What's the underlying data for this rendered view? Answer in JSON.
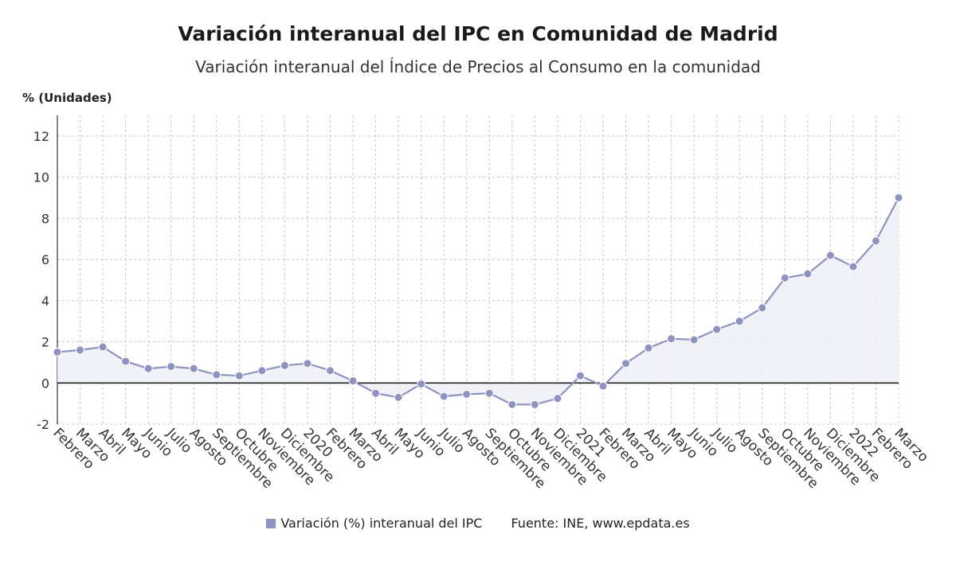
{
  "chart_data": {
    "type": "area",
    "title": "Variación interanual del IPC en Comunidad de Madrid",
    "subtitle": "Variación interanual del Índice de Precios al Consumo en la comunidad",
    "ylabel": "% (Unidades)",
    "ylim": [
      -2,
      13
    ],
    "yticks": [
      -2,
      0,
      2,
      4,
      6,
      8,
      10,
      12
    ],
    "grid": true,
    "categories": [
      "Febrero",
      "Marzo",
      "Abril",
      "Mayo",
      "Junio",
      "Julio",
      "Agosto",
      "Septiembre",
      "Octubre",
      "Noviembre",
      "Diciembre",
      "2020",
      "Febrero",
      "Marzo",
      "Abril",
      "Mayo",
      "Junio",
      "Julio",
      "Agosto",
      "Septiembre",
      "Octubre",
      "Noviembre",
      "Diciembre",
      "2021",
      "Febrero",
      "Marzo",
      "Abril",
      "Mayo",
      "Junio",
      "Julio",
      "Agosto",
      "Septiembre",
      "Octubre",
      "Noviembre",
      "Diciembre",
      "2022",
      "Febrero",
      "Marzo"
    ],
    "series": [
      {
        "name": "Variación (%) interanual del IPC",
        "color": "#8f93bf",
        "values": [
          1.5,
          1.6,
          1.75,
          1.05,
          0.7,
          0.8,
          0.7,
          0.4,
          0.35,
          0.6,
          0.85,
          0.95,
          0.6,
          0.1,
          -0.5,
          -0.7,
          -0.05,
          -0.65,
          -0.55,
          -0.5,
          -1.05,
          -1.05,
          -0.75,
          0.35,
          -0.15,
          0.95,
          1.7,
          2.15,
          2.1,
          2.6,
          3.0,
          3.65,
          5.1,
          5.3,
          6.2,
          5.65,
          6.9,
          9.0
        ]
      }
    ],
    "legend_position": "bottom-center",
    "source": "Fuente: INE, www.epdata.es"
  }
}
